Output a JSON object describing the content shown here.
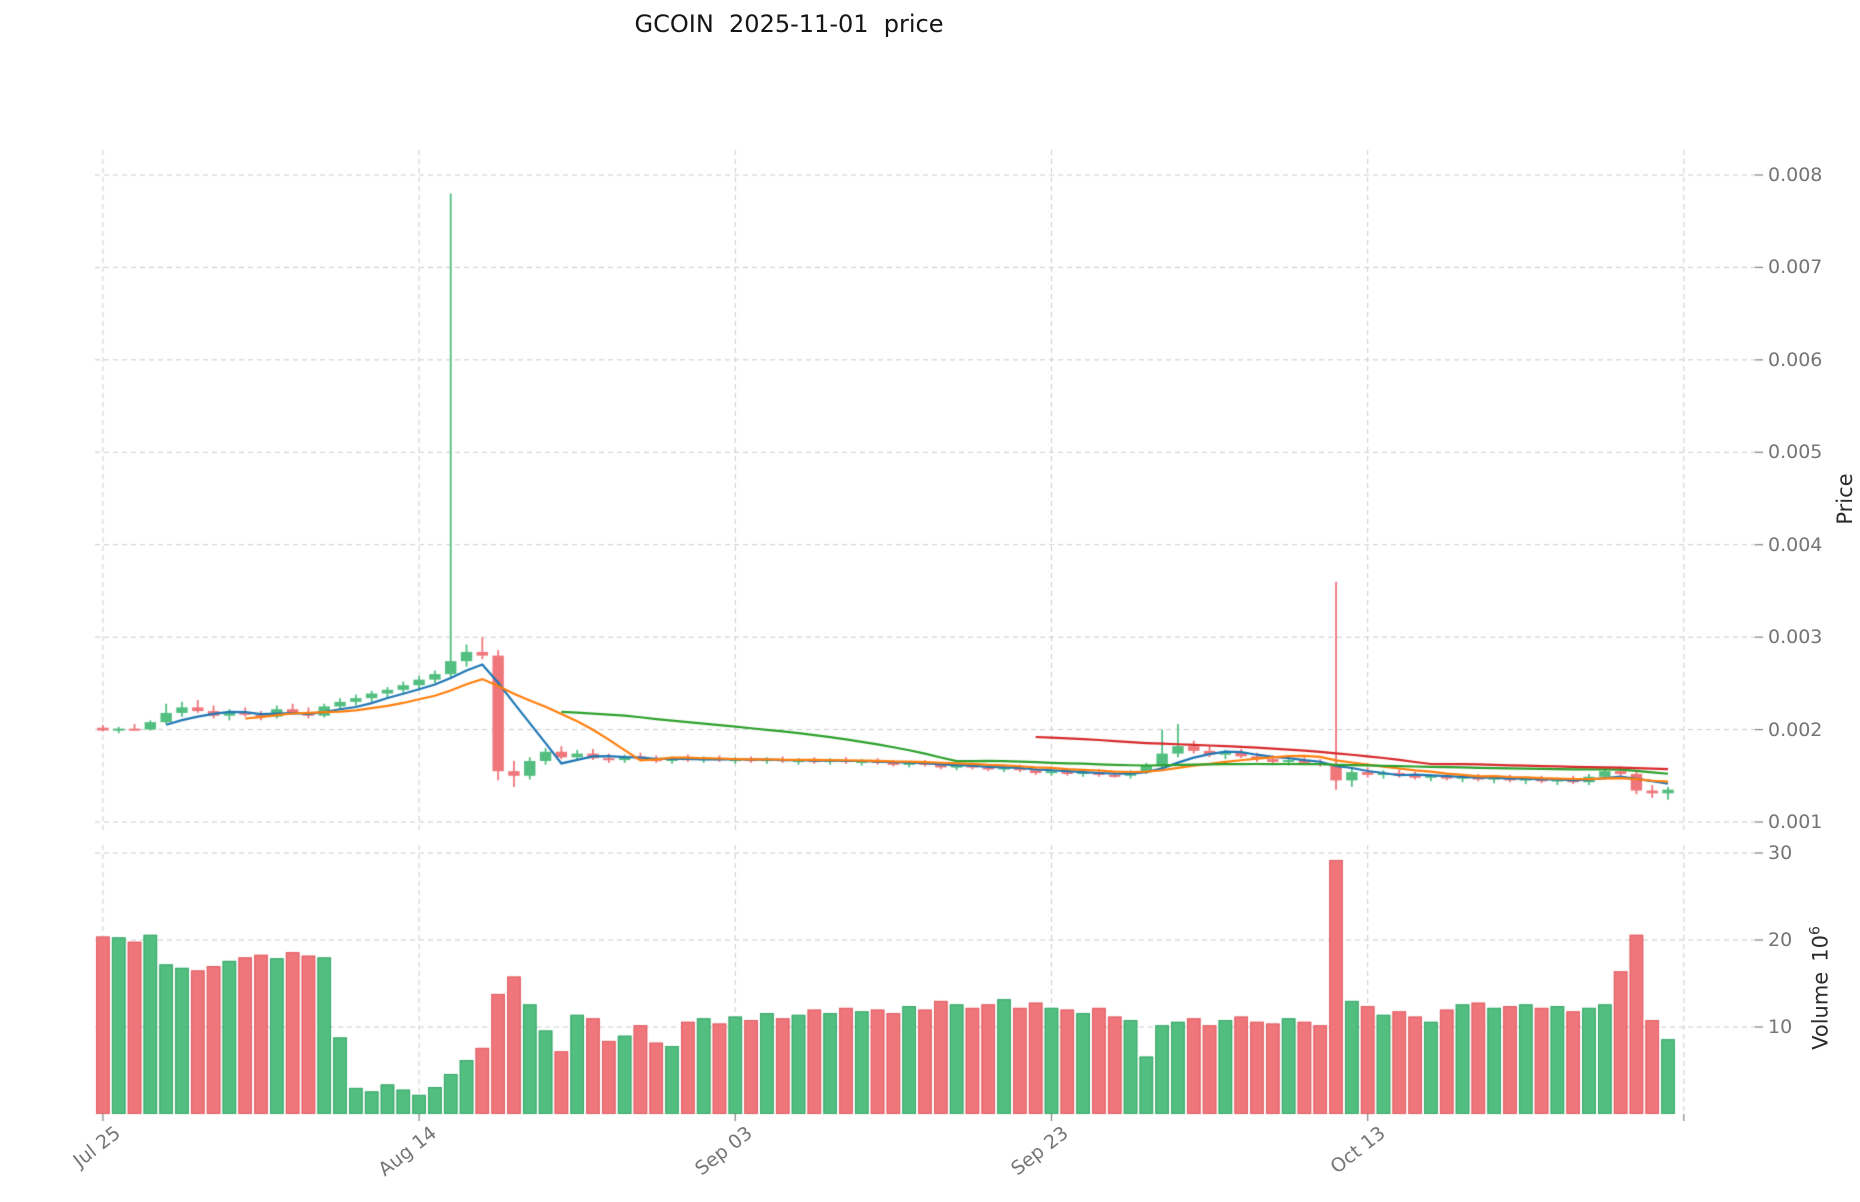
{
  "chart_data": {
    "type": "candlestick+volume",
    "title": "GCOIN  2025-11-01  price",
    "start_date": "2025-07-25",
    "end_date": "2025-11-01",
    "frequency": "daily",
    "price_axis": {
      "label": "Price",
      "ticks": [
        0.001,
        0.002,
        0.003,
        0.004,
        0.005,
        0.006,
        0.007,
        0.008
      ]
    },
    "volume_axis": {
      "label": "Volume",
      "unit_base": "10",
      "unit_exp": "6",
      "unit": "10^6 shares",
      "max": 30,
      "ticks": [
        10,
        20,
        30
      ]
    },
    "x_ticks": [
      {
        "index": 0,
        "label": "Jul 25"
      },
      {
        "index": 20,
        "label": "Aug 14"
      },
      {
        "index": 40,
        "label": "Sep 03"
      },
      {
        "index": 60,
        "label": "Sep 23"
      },
      {
        "index": 80,
        "label": "Oct 13"
      },
      {
        "index": 100,
        "label": ""
      }
    ],
    "moving_averages": [
      {
        "window": 5,
        "color": "#1f77b4"
      },
      {
        "window": 10,
        "color": "#ff7f0e"
      },
      {
        "window": 30,
        "color": "#2ca02c"
      },
      {
        "window": 60,
        "color": "#d62728"
      }
    ],
    "colors": {
      "up": "#52be80",
      "down": "#ef767a",
      "up_edge": "#3aa66b",
      "down_edge": "#e05f66",
      "grid": "#cccccc"
    },
    "open": [
      0.00202,
      0.00199,
      0.00201,
      0.002,
      0.00208,
      0.00218,
      0.00224,
      0.0022,
      0.00215,
      0.00219,
      0.00216,
      0.00214,
      0.00222,
      0.00218,
      0.00215,
      0.00225,
      0.0023,
      0.00234,
      0.00239,
      0.00243,
      0.00248,
      0.00254,
      0.0026,
      0.00274,
      0.00284,
      0.0028,
      0.00155,
      0.0015,
      0.00166,
      0.00176,
      0.0017,
      0.00174,
      0.00169,
      0.00167,
      0.00171,
      0.00168,
      0.00166,
      0.00169,
      0.00167,
      0.00169,
      0.00167,
      0.00168,
      0.00166,
      0.00168,
      0.00166,
      0.00167,
      0.00165,
      0.00167,
      0.00165,
      0.00166,
      0.00164,
      0.00162,
      0.00164,
      0.00162,
      0.00159,
      0.00161,
      0.00159,
      0.00157,
      0.00159,
      0.00156,
      0.00153,
      0.00155,
      0.00152,
      0.00154,
      0.00151,
      0.0015,
      0.00154,
      0.00161,
      0.00174,
      0.00182,
      0.00177,
      0.00173,
      0.00175,
      0.00171,
      0.00168,
      0.00165,
      0.00167,
      0.00164,
      0.00162,
      0.00145,
      0.00154,
      0.00151,
      0.00153,
      0.0015,
      0.00148,
      0.0015,
      0.00147,
      0.00149,
      0.00146,
      0.00148,
      0.00145,
      0.00147,
      0.00144,
      0.00146,
      0.00143,
      0.00149,
      0.00155,
      0.00152,
      0.00134,
      0.00131
    ],
    "high": [
      0.00205,
      0.00203,
      0.00206,
      0.0021,
      0.00228,
      0.0023,
      0.00232,
      0.00226,
      0.00222,
      0.00224,
      0.0022,
      0.00226,
      0.00228,
      0.00224,
      0.00228,
      0.00234,
      0.00238,
      0.00242,
      0.00246,
      0.00252,
      0.00258,
      0.00264,
      0.0078,
      0.00292,
      0.003,
      0.00286,
      0.00166,
      0.0017,
      0.0018,
      0.00182,
      0.00178,
      0.00179,
      0.00174,
      0.00173,
      0.00175,
      0.00172,
      0.00171,
      0.00173,
      0.00171,
      0.00172,
      0.0017,
      0.00171,
      0.0017,
      0.00171,
      0.00169,
      0.0017,
      0.00169,
      0.0017,
      0.00168,
      0.00169,
      0.00167,
      0.00166,
      0.00167,
      0.00165,
      0.00163,
      0.00164,
      0.00162,
      0.00161,
      0.00162,
      0.00159,
      0.00157,
      0.00158,
      0.00156,
      0.00157,
      0.00155,
      0.00156,
      0.00164,
      0.002,
      0.00206,
      0.00188,
      0.00182,
      0.00178,
      0.00179,
      0.00175,
      0.00172,
      0.0017,
      0.0017,
      0.00168,
      0.0036,
      0.00158,
      0.00159,
      0.00156,
      0.00157,
      0.00154,
      0.00152,
      0.00153,
      0.00151,
      0.00152,
      0.0015,
      0.00151,
      0.00149,
      0.0015,
      0.00148,
      0.0015,
      0.00152,
      0.00158,
      0.0016,
      0.00156,
      0.0014,
      0.00138
    ],
    "low": [
      0.00198,
      0.00196,
      0.00199,
      0.00199,
      0.00206,
      0.00214,
      0.00218,
      0.00212,
      0.0021,
      0.00214,
      0.0021,
      0.00212,
      0.00216,
      0.00212,
      0.00213,
      0.00222,
      0.00226,
      0.0023,
      0.00234,
      0.0024,
      0.00244,
      0.0025,
      0.00256,
      0.00268,
      0.00276,
      0.00145,
      0.00138,
      0.00146,
      0.00162,
      0.00168,
      0.00166,
      0.00167,
      0.00164,
      0.00164,
      0.00166,
      0.00164,
      0.00163,
      0.00165,
      0.00164,
      0.00165,
      0.00163,
      0.00164,
      0.00163,
      0.00164,
      0.00162,
      0.00163,
      0.00162,
      0.00163,
      0.00161,
      0.00162,
      0.0016,
      0.00159,
      0.0016,
      0.00157,
      0.00156,
      0.00157,
      0.00155,
      0.00154,
      0.00154,
      0.00151,
      0.0015,
      0.0015,
      0.00149,
      0.00149,
      0.00148,
      0.00147,
      0.00152,
      0.00158,
      0.0017,
      0.00174,
      0.0017,
      0.00168,
      0.00169,
      0.00165,
      0.00163,
      0.00161,
      0.00162,
      0.0016,
      0.00135,
      0.00138,
      0.00148,
      0.00147,
      0.00148,
      0.00146,
      0.00144,
      0.00145,
      0.00143,
      0.00144,
      0.00142,
      0.00143,
      0.00141,
      0.00142,
      0.0014,
      0.00141,
      0.0014,
      0.00146,
      0.00148,
      0.0013,
      0.00126,
      0.00124
    ],
    "close": [
      0.00199,
      0.00201,
      0.002,
      0.00208,
      0.00218,
      0.00224,
      0.0022,
      0.00215,
      0.00219,
      0.00216,
      0.00214,
      0.00222,
      0.00218,
      0.00215,
      0.00225,
      0.0023,
      0.00234,
      0.00239,
      0.00243,
      0.00248,
      0.00254,
      0.0026,
      0.00274,
      0.00284,
      0.0028,
      0.00155,
      0.0015,
      0.00166,
      0.00176,
      0.0017,
      0.00174,
      0.00169,
      0.00167,
      0.00171,
      0.00168,
      0.00166,
      0.00169,
      0.00167,
      0.00169,
      0.00167,
      0.00168,
      0.00166,
      0.00168,
      0.00166,
      0.00167,
      0.00165,
      0.00167,
      0.00165,
      0.00166,
      0.00164,
      0.00162,
      0.00164,
      0.00162,
      0.00159,
      0.00161,
      0.00159,
      0.00157,
      0.00159,
      0.00156,
      0.00153,
      0.00155,
      0.00152,
      0.00154,
      0.00151,
      0.0015,
      0.00154,
      0.00161,
      0.00174,
      0.00182,
      0.00177,
      0.00173,
      0.00175,
      0.00171,
      0.00168,
      0.00165,
      0.00167,
      0.00164,
      0.00162,
      0.00145,
      0.00154,
      0.00151,
      0.00153,
      0.0015,
      0.00148,
      0.0015,
      0.00147,
      0.00149,
      0.00146,
      0.00148,
      0.00145,
      0.00147,
      0.00144,
      0.00146,
      0.00143,
      0.00149,
      0.00155,
      0.00152,
      0.00134,
      0.00131,
      0.00135
    ],
    "volume": [
      20.4,
      20.3,
      19.8,
      20.6,
      17.2,
      16.8,
      16.5,
      17,
      17.6,
      18,
      18.3,
      17.9,
      18.6,
      18.2,
      18,
      8.8,
      3,
      2.6,
      3.4,
      2.8,
      2.2,
      3.1,
      4.6,
      6.2,
      7.6,
      13.8,
      15.8,
      12.6,
      9.6,
      7.2,
      11.4,
      11,
      8.4,
      9,
      10.2,
      8.2,
      7.8,
      10.6,
      11,
      10.4,
      11.2,
      10.8,
      11.6,
      11,
      11.4,
      12,
      11.6,
      12.2,
      11.8,
      12,
      11.6,
      12.4,
      12,
      13,
      12.6,
      12.2,
      12.6,
      13.2,
      12.2,
      12.8,
      12.2,
      12,
      11.6,
      12.2,
      11.2,
      10.8,
      6.6,
      10.2,
      10.6,
      11,
      10.2,
      10.8,
      11.2,
      10.6,
      10.4,
      11,
      10.6,
      10.2,
      29.2,
      13,
      12.4,
      11.4,
      11.8,
      11.2,
      10.6,
      12,
      12.6,
      12.8,
      12.2,
      12.4,
      12.6,
      12.2,
      12.4,
      11.8,
      12.2,
      12.6,
      16.4,
      20.6,
      10.8,
      8.6
    ]
  }
}
